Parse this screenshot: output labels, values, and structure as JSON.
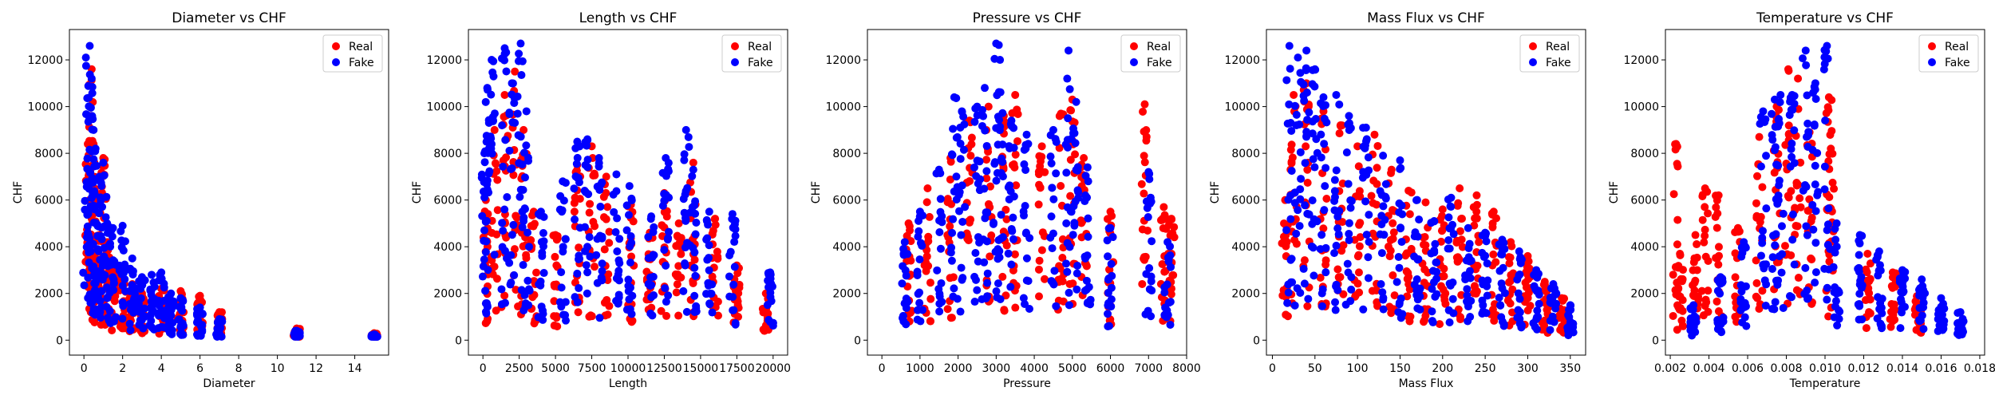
{
  "colors": {
    "real": "#ff0000",
    "fake": "#0000ff",
    "axis": "#000000",
    "background": "#ffffff"
  },
  "chart_data": [
    {
      "type": "scatter",
      "title": "Diameter vs CHF",
      "xlabel": "Diameter",
      "ylabel": "CHF",
      "xlim": [
        -0.75,
        15.75
      ],
      "ylim": [
        -640,
        13300
      ],
      "xticks": [
        "0",
        "2",
        "4",
        "6",
        "8",
        "10",
        "12",
        "14"
      ],
      "xtick_values": [
        0,
        2,
        4,
        6,
        8,
        10,
        12,
        14
      ],
      "yticks": [
        "0",
        "2000",
        "4000",
        "6000",
        "8000",
        "10000",
        "12000"
      ],
      "ytick_values": [
        0,
        2000,
        4000,
        6000,
        8000,
        10000,
        12000
      ],
      "legend": {
        "position": "top-right",
        "entries": [
          "Real",
          "Fake"
        ]
      },
      "series": [
        {
          "name": "Real",
          "color": "#ff0000",
          "points": [
            [
              0.2,
              8400
            ],
            [
              0.3,
              9600
            ],
            [
              0.4,
              11600
            ],
            [
              0.5,
              7000
            ],
            [
              0.6,
              6000
            ],
            [
              0.8,
              4500
            ],
            [
              1.0,
              7800
            ],
            [
              1.2,
              4200
            ],
            [
              1.5,
              3400
            ],
            [
              2.0,
              3000
            ],
            [
              2.5,
              2400
            ],
            [
              3.0,
              2000
            ],
            [
              4.0,
              2200
            ],
            [
              5.0,
              2100
            ],
            [
              6.0,
              1900
            ],
            [
              7.0,
              1200
            ],
            [
              11.0,
              500
            ],
            [
              15.0,
              300
            ]
          ]
        },
        {
          "name": "Fake",
          "color": "#0000ff",
          "points": [
            [
              0.1,
              12100
            ],
            [
              0.3,
              12600
            ],
            [
              0.4,
              11200
            ],
            [
              0.5,
              9000
            ],
            [
              0.6,
              8200
            ],
            [
              0.8,
              7000
            ],
            [
              1.0,
              7600
            ],
            [
              1.2,
              5000
            ],
            [
              1.5,
              4800
            ],
            [
              2.0,
              4900
            ],
            [
              2.5,
              3500
            ],
            [
              3.0,
              2700
            ],
            [
              3.5,
              2800
            ],
            [
              4.0,
              2900
            ],
            [
              4.5,
              2000
            ],
            [
              5.0,
              1800
            ],
            [
              6.0,
              1400
            ],
            [
              7.0,
              900
            ],
            [
              11.0,
              400
            ],
            [
              15.0,
              250
            ]
          ]
        }
      ]
    },
    {
      "type": "scatter",
      "title": "Length vs CHF",
      "xlabel": "Length",
      "ylabel": "CHF",
      "xlim": [
        -1000,
        21000
      ],
      "ylim": [
        -640,
        13300
      ],
      "xticks": [
        "0",
        "2500",
        "5000",
        "7500",
        "10000",
        "12500",
        "15000",
        "17500",
        "20000"
      ],
      "xtick_values": [
        0,
        2500,
        5000,
        7500,
        10000,
        12500,
        15000,
        17500,
        20000
      ],
      "yticks": [
        "0",
        "2000",
        "4000",
        "6000",
        "8000",
        "10000",
        "12000"
      ],
      "ytick_values": [
        0,
        2000,
        4000,
        6000,
        8000,
        10000,
        12000
      ],
      "legend": {
        "position": "top-right",
        "entries": [
          "Real",
          "Fake"
        ]
      },
      "series": [
        {
          "name": "Real",
          "color": "#ff0000",
          "points": [
            [
              200,
              6000
            ],
            [
              800,
              9000
            ],
            [
              1500,
              10500
            ],
            [
              2200,
              11500
            ],
            [
              2800,
              9000
            ],
            [
              3500,
              5500
            ],
            [
              5000,
              4500
            ],
            [
              6500,
              7500
            ],
            [
              7500,
              8300
            ],
            [
              8500,
              7000
            ],
            [
              10200,
              5800
            ],
            [
              11500,
              4600
            ],
            [
              12500,
              6300
            ],
            [
              13500,
              5000
            ],
            [
              14500,
              7600
            ],
            [
              16000,
              5200
            ],
            [
              17500,
              3200
            ],
            [
              19500,
              2000
            ]
          ]
        },
        {
          "name": "Fake",
          "color": "#0000ff",
          "points": [
            [
              100,
              8000
            ],
            [
              300,
              10800
            ],
            [
              600,
              12000
            ],
            [
              1500,
              12500
            ],
            [
              2000,
              11000
            ],
            [
              2600,
              12700
            ],
            [
              3000,
              9800
            ],
            [
              4000,
              5500
            ],
            [
              5500,
              6800
            ],
            [
              6500,
              8500
            ],
            [
              7200,
              8600
            ],
            [
              8000,
              7800
            ],
            [
              9200,
              7100
            ],
            [
              10100,
              6600
            ],
            [
              11600,
              5300
            ],
            [
              12600,
              7800
            ],
            [
              14000,
              9000
            ],
            [
              14500,
              7300
            ],
            [
              15600,
              5500
            ],
            [
              17200,
              5400
            ],
            [
              19800,
              2900
            ]
          ]
        }
      ]
    },
    {
      "type": "scatter",
      "title": "Pressure vs CHF",
      "xlabel": "Pressure",
      "ylabel": "CHF",
      "xlim": [
        -380,
        8000
      ],
      "ylim": [
        -640,
        13300
      ],
      "xticks": [
        "0",
        "1000",
        "2000",
        "3000",
        "4000",
        "5000",
        "6000",
        "7000",
        "8000"
      ],
      "xtick_values": [
        0,
        1000,
        2000,
        3000,
        4000,
        5000,
        6000,
        7000,
        8000
      ],
      "yticks": [
        "0",
        "2000",
        "4000",
        "6000",
        "8000",
        "10000",
        "12000"
      ],
      "ytick_values": [
        0,
        2000,
        4000,
        6000,
        8000,
        10000,
        12000
      ],
      "legend": {
        "position": "top-right",
        "entries": [
          "Real",
          "Fake"
        ]
      },
      "series": [
        {
          "name": "Real",
          "color": "#ff0000",
          "points": [
            [
              700,
              5000
            ],
            [
              1200,
              6500
            ],
            [
              1800,
              7800
            ],
            [
              2300,
              9400
            ],
            [
              2800,
              10000
            ],
            [
              3200,
              9600
            ],
            [
              3500,
              10500
            ],
            [
              4200,
              8300
            ],
            [
              4700,
              9700
            ],
            [
              5000,
              10300
            ],
            [
              5300,
              7800
            ],
            [
              6000,
              5500
            ],
            [
              6900,
              10100
            ],
            [
              7400,
              5700
            ],
            [
              7600,
              5200
            ]
          ]
        },
        {
          "name": "Fake",
          "color": "#0000ff",
          "points": [
            [
              600,
              4200
            ],
            [
              1000,
              5500
            ],
            [
              1500,
              7300
            ],
            [
              1900,
              10400
            ],
            [
              2100,
              9800
            ],
            [
              2500,
              10000
            ],
            [
              2700,
              10800
            ],
            [
              3000,
              12700
            ],
            [
              3100,
              12000
            ],
            [
              3400,
              9400
            ],
            [
              3800,
              8800
            ],
            [
              4500,
              9000
            ],
            [
              4900,
              12400
            ],
            [
              5100,
              10200
            ],
            [
              5400,
              7400
            ],
            [
              6000,
              4800
            ],
            [
              7000,
              7200
            ],
            [
              7500,
              4200
            ]
          ]
        }
      ]
    },
    {
      "type": "scatter",
      "title": "Mass Flux vs CHF",
      "xlabel": "Mass Flux",
      "ylabel": "CHF",
      "xlim": [
        -7,
        368
      ],
      "ylim": [
        -640,
        13300
      ],
      "xticks": [
        "0",
        "50",
        "100",
        "150",
        "200",
        "250",
        "300",
        "350"
      ],
      "xtick_values": [
        0,
        50,
        100,
        150,
        200,
        250,
        300,
        350
      ],
      "yticks": [
        "0",
        "2000",
        "4000",
        "6000",
        "8000",
        "10000",
        "12000"
      ],
      "ytick_values": [
        0,
        2000,
        4000,
        6000,
        8000,
        10000,
        12000
      ],
      "legend": {
        "position": "top-right",
        "entries": [
          "Real",
          "Fake"
        ]
      },
      "series": [
        {
          "name": "Real",
          "color": "#ff0000",
          "points": [
            [
              15,
              6000
            ],
            [
              25,
              10500
            ],
            [
              40,
              11000
            ],
            [
              60,
              9800
            ],
            [
              80,
              9200
            ],
            [
              100,
              8300
            ],
            [
              120,
              8800
            ],
            [
              140,
              7300
            ],
            [
              160,
              6400
            ],
            [
              180,
              5900
            ],
            [
              200,
              5600
            ],
            [
              220,
              6500
            ],
            [
              240,
              6200
            ],
            [
              260,
              5500
            ],
            [
              280,
              4200
            ],
            [
              300,
              3600
            ],
            [
              320,
              2500
            ],
            [
              340,
              1800
            ]
          ]
        },
        {
          "name": "Fake",
          "color": "#0000ff",
          "points": [
            [
              20,
              12600
            ],
            [
              30,
              12100
            ],
            [
              40,
              12400
            ],
            [
              50,
              11600
            ],
            [
              60,
              10400
            ],
            [
              75,
              10500
            ],
            [
              90,
              9600
            ],
            [
              110,
              9100
            ],
            [
              130,
              7900
            ],
            [
              150,
              7700
            ],
            [
              170,
              6000
            ],
            [
              190,
              5100
            ],
            [
              210,
              6100
            ],
            [
              230,
              4800
            ],
            [
              250,
              4600
            ],
            [
              270,
              4300
            ],
            [
              290,
              3800
            ],
            [
              310,
              3000
            ],
            [
              330,
              2400
            ],
            [
              350,
              1500
            ]
          ]
        }
      ]
    },
    {
      "type": "scatter",
      "title": "Temperature vs CHF",
      "xlabel": "Temperature",
      "ylabel": "CHF",
      "xlim": [
        0.00175,
        0.01825
      ],
      "ylim": [
        -640,
        13300
      ],
      "xticks": [
        "0.002",
        "0.004",
        "0.006",
        "0.008",
        "0.010",
        "0.012",
        "0.014",
        "0.016",
        "0.018"
      ],
      "xtick_values": [
        0.002,
        0.004,
        0.006,
        0.008,
        0.01,
        0.012,
        0.014,
        0.016,
        0.018
      ],
      "yticks": [
        "0",
        "2000",
        "4000",
        "6000",
        "8000",
        "10000",
        "12000"
      ],
      "ytick_values": [
        0,
        2000,
        4000,
        6000,
        8000,
        10000,
        12000
      ],
      "legend": {
        "position": "top-right",
        "entries": [
          "Real",
          "Fake"
        ]
      },
      "series": [
        {
          "name": "Real",
          "color": "#ff0000",
          "points": [
            [
              0.0023,
              8400
            ],
            [
              0.0025,
              3700
            ],
            [
              0.0033,
              4500
            ],
            [
              0.0038,
              6500
            ],
            [
              0.0045,
              6200
            ],
            [
              0.0055,
              4800
            ],
            [
              0.0066,
              8700
            ],
            [
              0.0075,
              10000
            ],
            [
              0.0081,
              11600
            ],
            [
              0.0086,
              11200
            ],
            [
              0.0092,
              8900
            ],
            [
              0.0102,
              10400
            ],
            [
              0.0103,
              8200
            ],
            [
              0.0122,
              3700
            ],
            [
              0.0135,
              2900
            ],
            [
              0.0148,
              1900
            ]
          ]
        },
        {
          "name": "Fake",
          "color": "#0000ff",
          "points": [
            [
              0.0032,
              1500
            ],
            [
              0.0046,
              2700
            ],
            [
              0.0058,
              4200
            ],
            [
              0.0068,
              9800
            ],
            [
              0.0074,
              10300
            ],
            [
              0.0077,
              10500
            ],
            [
              0.0083,
              10500
            ],
            [
              0.009,
              12400
            ],
            [
              0.0095,
              11000
            ],
            [
              0.0101,
              12600
            ],
            [
              0.0106,
              5000
            ],
            [
              0.0118,
              4500
            ],
            [
              0.0128,
              3800
            ],
            [
              0.014,
              3000
            ],
            [
              0.015,
              2600
            ],
            [
              0.016,
              1800
            ],
            [
              0.017,
              1200
            ]
          ]
        }
      ]
    }
  ]
}
